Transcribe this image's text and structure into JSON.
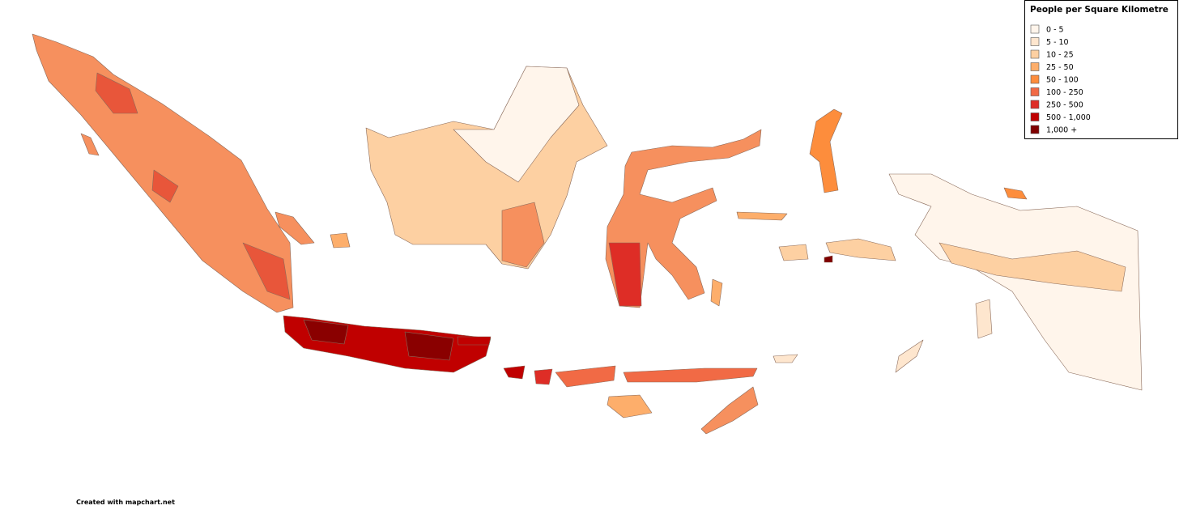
{
  "legend": {
    "title": "People per Square Kilometre",
    "items": [
      {
        "label": "0 - 5",
        "color": "#fff5eb"
      },
      {
        "label": "5 - 10",
        "color": "#fee6ce"
      },
      {
        "label": "10 - 25",
        "color": "#fdd0a2"
      },
      {
        "label": "25 - 50",
        "color": "#fdae6b"
      },
      {
        "label": "50 - 100",
        "color": "#fd8d3c"
      },
      {
        "label": "100 - 250",
        "color": "#f16a45"
      },
      {
        "label": "250 - 500",
        "color": "#de2d26"
      },
      {
        "label": "500 - 1,000",
        "color": "#c00000"
      },
      {
        "label": "1,000 +",
        "color": "#7f0000"
      }
    ]
  },
  "footer": "Created with mapchart.net"
}
